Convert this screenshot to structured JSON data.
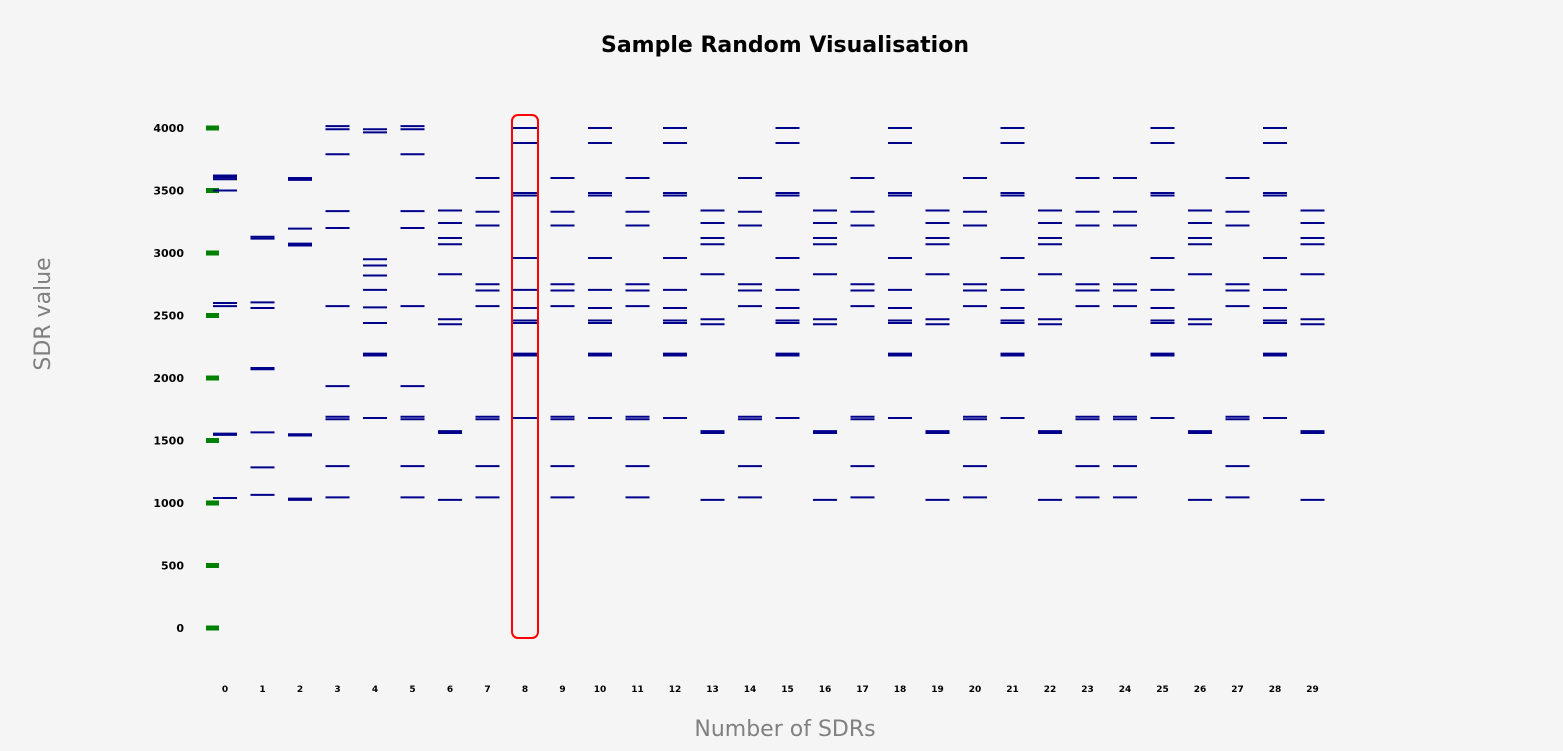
{
  "chart_data": {
    "type": "scatter",
    "title": "Sample Random Visualisation",
    "xlabel": "Number of SDRs",
    "ylabel": "SDR value",
    "ylim": [
      0,
      4000
    ],
    "y_ticks": [
      0,
      500,
      1000,
      1500,
      2000,
      2500,
      3000,
      3500,
      4000
    ],
    "x_ticks": [
      0,
      1,
      2,
      3,
      4,
      5,
      6,
      7,
      8,
      9,
      10,
      11,
      12,
      13,
      14,
      15,
      16,
      17,
      18,
      19,
      20,
      21,
      22,
      23,
      24,
      25,
      26,
      27,
      28,
      29
    ],
    "grid": false,
    "colors": {
      "sdr_mark": "#00008b",
      "y_tick_mark": "#008000",
      "highlight": "#ff0000"
    },
    "highlighted_sdr": 8,
    "series": [
      {
        "x": 0,
        "values": [
          1040,
          1545,
          1555,
          2575,
          2600,
          3500,
          3590,
          3605,
          3620
        ]
      },
      {
        "x": 1,
        "values": [
          1065,
          1285,
          1565,
          2070,
          2080,
          2560,
          2605,
          3115,
          3130
        ]
      },
      {
        "x": 2,
        "values": [
          1025,
          1035,
          1540,
          1550,
          3060,
          3075,
          3195,
          3585,
          3600
        ]
      },
      {
        "x": 3,
        "values": [
          1045,
          1295,
          1670,
          1690,
          1935,
          2575,
          3200,
          3335,
          3790,
          3990,
          4015
        ]
      },
      {
        "x": 4,
        "values": [
          1680,
          2180,
          2195,
          2440,
          2565,
          2705,
          2820,
          2900,
          2950,
          3965,
          3990
        ]
      },
      {
        "x": 5,
        "values": [
          1045,
          1295,
          1670,
          1690,
          1935,
          2575,
          3200,
          3335,
          3790,
          3990,
          4015
        ]
      },
      {
        "x": 6,
        "values": [
          1025,
          1560,
          1575,
          2430,
          2470,
          2830,
          3070,
          3120,
          3240,
          3340
        ]
      },
      {
        "x": 7,
        "values": [
          1045,
          1295,
          1670,
          1690,
          2575,
          2700,
          2750,
          3220,
          3330,
          3600
        ]
      },
      {
        "x": 8,
        "values": [
          1680,
          2180,
          2195,
          2440,
          2460,
          2560,
          2705,
          2960,
          3460,
          3480,
          3880,
          4000
        ]
      },
      {
        "x": 9,
        "values": [
          1045,
          1295,
          1670,
          1690,
          2575,
          2700,
          2750,
          3220,
          3330,
          3600
        ]
      },
      {
        "x": 10,
        "values": [
          1680,
          2180,
          2195,
          2440,
          2460,
          2560,
          2705,
          2960,
          3460,
          3480,
          3880,
          4000
        ]
      },
      {
        "x": 11,
        "values": [
          1045,
          1295,
          1670,
          1690,
          2575,
          2700,
          2750,
          3220,
          3330,
          3600
        ]
      },
      {
        "x": 12,
        "values": [
          1680,
          2180,
          2195,
          2440,
          2460,
          2560,
          2705,
          2960,
          3460,
          3480,
          3880,
          4000
        ]
      },
      {
        "x": 13,
        "values": [
          1025,
          1560,
          1575,
          2430,
          2470,
          2830,
          3070,
          3120,
          3240,
          3340
        ]
      },
      {
        "x": 14,
        "values": [
          1045,
          1295,
          1670,
          1690,
          2575,
          2700,
          2750,
          3220,
          3330,
          3600
        ]
      },
      {
        "x": 15,
        "values": [
          1680,
          2180,
          2195,
          2440,
          2460,
          2560,
          2705,
          2960,
          3460,
          3480,
          3880,
          4000
        ]
      },
      {
        "x": 16,
        "values": [
          1025,
          1560,
          1575,
          2430,
          2470,
          2830,
          3070,
          3120,
          3240,
          3340
        ]
      },
      {
        "x": 17,
        "values": [
          1045,
          1295,
          1670,
          1690,
          2575,
          2700,
          2750,
          3220,
          3330,
          3600
        ]
      },
      {
        "x": 18,
        "values": [
          1680,
          2180,
          2195,
          2440,
          2460,
          2560,
          2705,
          2960,
          3460,
          3480,
          3880,
          4000
        ]
      },
      {
        "x": 19,
        "values": [
          1025,
          1560,
          1575,
          2430,
          2470,
          2830,
          3070,
          3120,
          3240,
          3340
        ]
      },
      {
        "x": 20,
        "values": [
          1045,
          1295,
          1670,
          1690,
          2575,
          2700,
          2750,
          3220,
          3330,
          3600
        ]
      },
      {
        "x": 21,
        "values": [
          1680,
          2180,
          2195,
          2440,
          2460,
          2560,
          2705,
          2960,
          3460,
          3480,
          3880,
          4000
        ]
      },
      {
        "x": 22,
        "values": [
          1025,
          1560,
          1575,
          2430,
          2470,
          2830,
          3070,
          3120,
          3240,
          3340
        ]
      },
      {
        "x": 23,
        "values": [
          1045,
          1295,
          1670,
          1690,
          2575,
          2700,
          2750,
          3220,
          3330,
          3600
        ]
      },
      {
        "x": 24,
        "values": [
          1045,
          1295,
          1670,
          1690,
          2575,
          2700,
          2750,
          3220,
          3330,
          3600
        ]
      },
      {
        "x": 25,
        "values": [
          1680,
          2180,
          2195,
          2440,
          2460,
          2560,
          2705,
          2960,
          3460,
          3480,
          3880,
          4000
        ]
      },
      {
        "x": 26,
        "values": [
          1025,
          1560,
          1575,
          2430,
          2470,
          2830,
          3070,
          3120,
          3240,
          3340
        ]
      },
      {
        "x": 27,
        "values": [
          1045,
          1295,
          1670,
          1690,
          2575,
          2700,
          2750,
          3220,
          3330,
          3600
        ]
      },
      {
        "x": 28,
        "values": [
          1680,
          2180,
          2195,
          2440,
          2460,
          2560,
          2705,
          2960,
          3460,
          3480,
          3880,
          4000
        ]
      },
      {
        "x": 29,
        "values": [
          1025,
          1560,
          1575,
          2430,
          2470,
          2830,
          3070,
          3120,
          3240,
          3340
        ]
      }
    ]
  }
}
